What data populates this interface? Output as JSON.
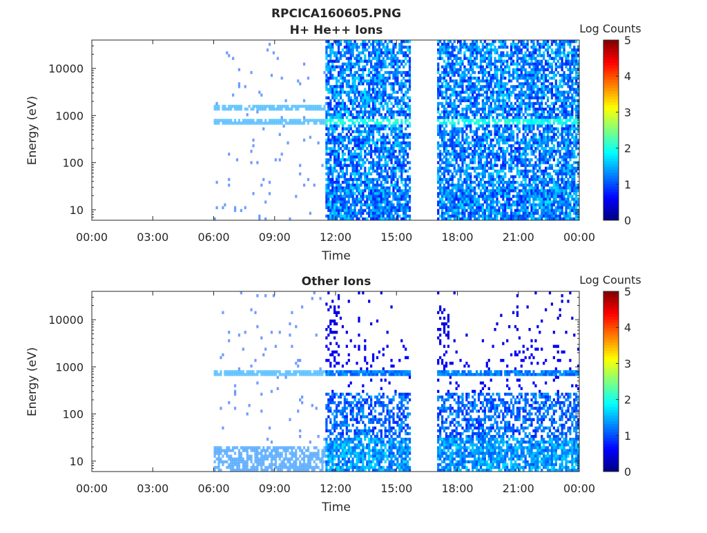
{
  "chart_data": [
    {
      "type": "heatmap",
      "title": "RPCICA160605.PNG",
      "subtitle": "H+ He++ Ions",
      "xlabel": "Time",
      "ylabel": "Energy (eV)",
      "x_ticks": [
        "00:00",
        "03:00",
        "06:00",
        "09:00",
        "12:00",
        "15:00",
        "18:00",
        "21:00",
        "00:00"
      ],
      "y_scale": "log",
      "y_ticks": [
        10,
        100,
        1000,
        10000
      ],
      "y_tick_labels": [
        "10",
        "100",
        "1000",
        "10000"
      ],
      "ylim": [
        6,
        40000
      ],
      "colorbar": {
        "label": "Log Counts",
        "ticks": [
          "0",
          "1",
          "2",
          "3",
          "4",
          "5"
        ],
        "range": [
          0,
          5
        ],
        "colormap": "jet"
      },
      "data_intervals_hours": [
        [
          11.5,
          15.67
        ],
        [
          17.0,
          24.0
        ]
      ],
      "band_energies_ev": [
        700,
        1500
      ],
      "sparse_interval_hours": [
        6.0,
        11.5
      ]
    },
    {
      "type": "heatmap",
      "title": "Other Ions",
      "xlabel": "Time",
      "ylabel": "Energy (eV)",
      "x_ticks": [
        "00:00",
        "03:00",
        "06:00",
        "09:00",
        "12:00",
        "15:00",
        "18:00",
        "21:00",
        "00:00"
      ],
      "y_scale": "log",
      "y_ticks": [
        10,
        100,
        1000,
        10000
      ],
      "y_tick_labels": [
        "10",
        "100",
        "1000",
        "10000"
      ],
      "ylim": [
        6,
        40000
      ],
      "colorbar": {
        "label": "Log Counts",
        "ticks": [
          "0",
          "1",
          "2",
          "3",
          "4",
          "5"
        ],
        "range": [
          0,
          5
        ],
        "colormap": "jet"
      },
      "data_intervals_hours": [
        [
          11.5,
          15.67
        ],
        [
          17.0,
          24.0
        ]
      ],
      "band_energies_ev": [
        700
      ],
      "sparse_interval_hours": [
        6.0,
        11.5
      ]
    }
  ]
}
